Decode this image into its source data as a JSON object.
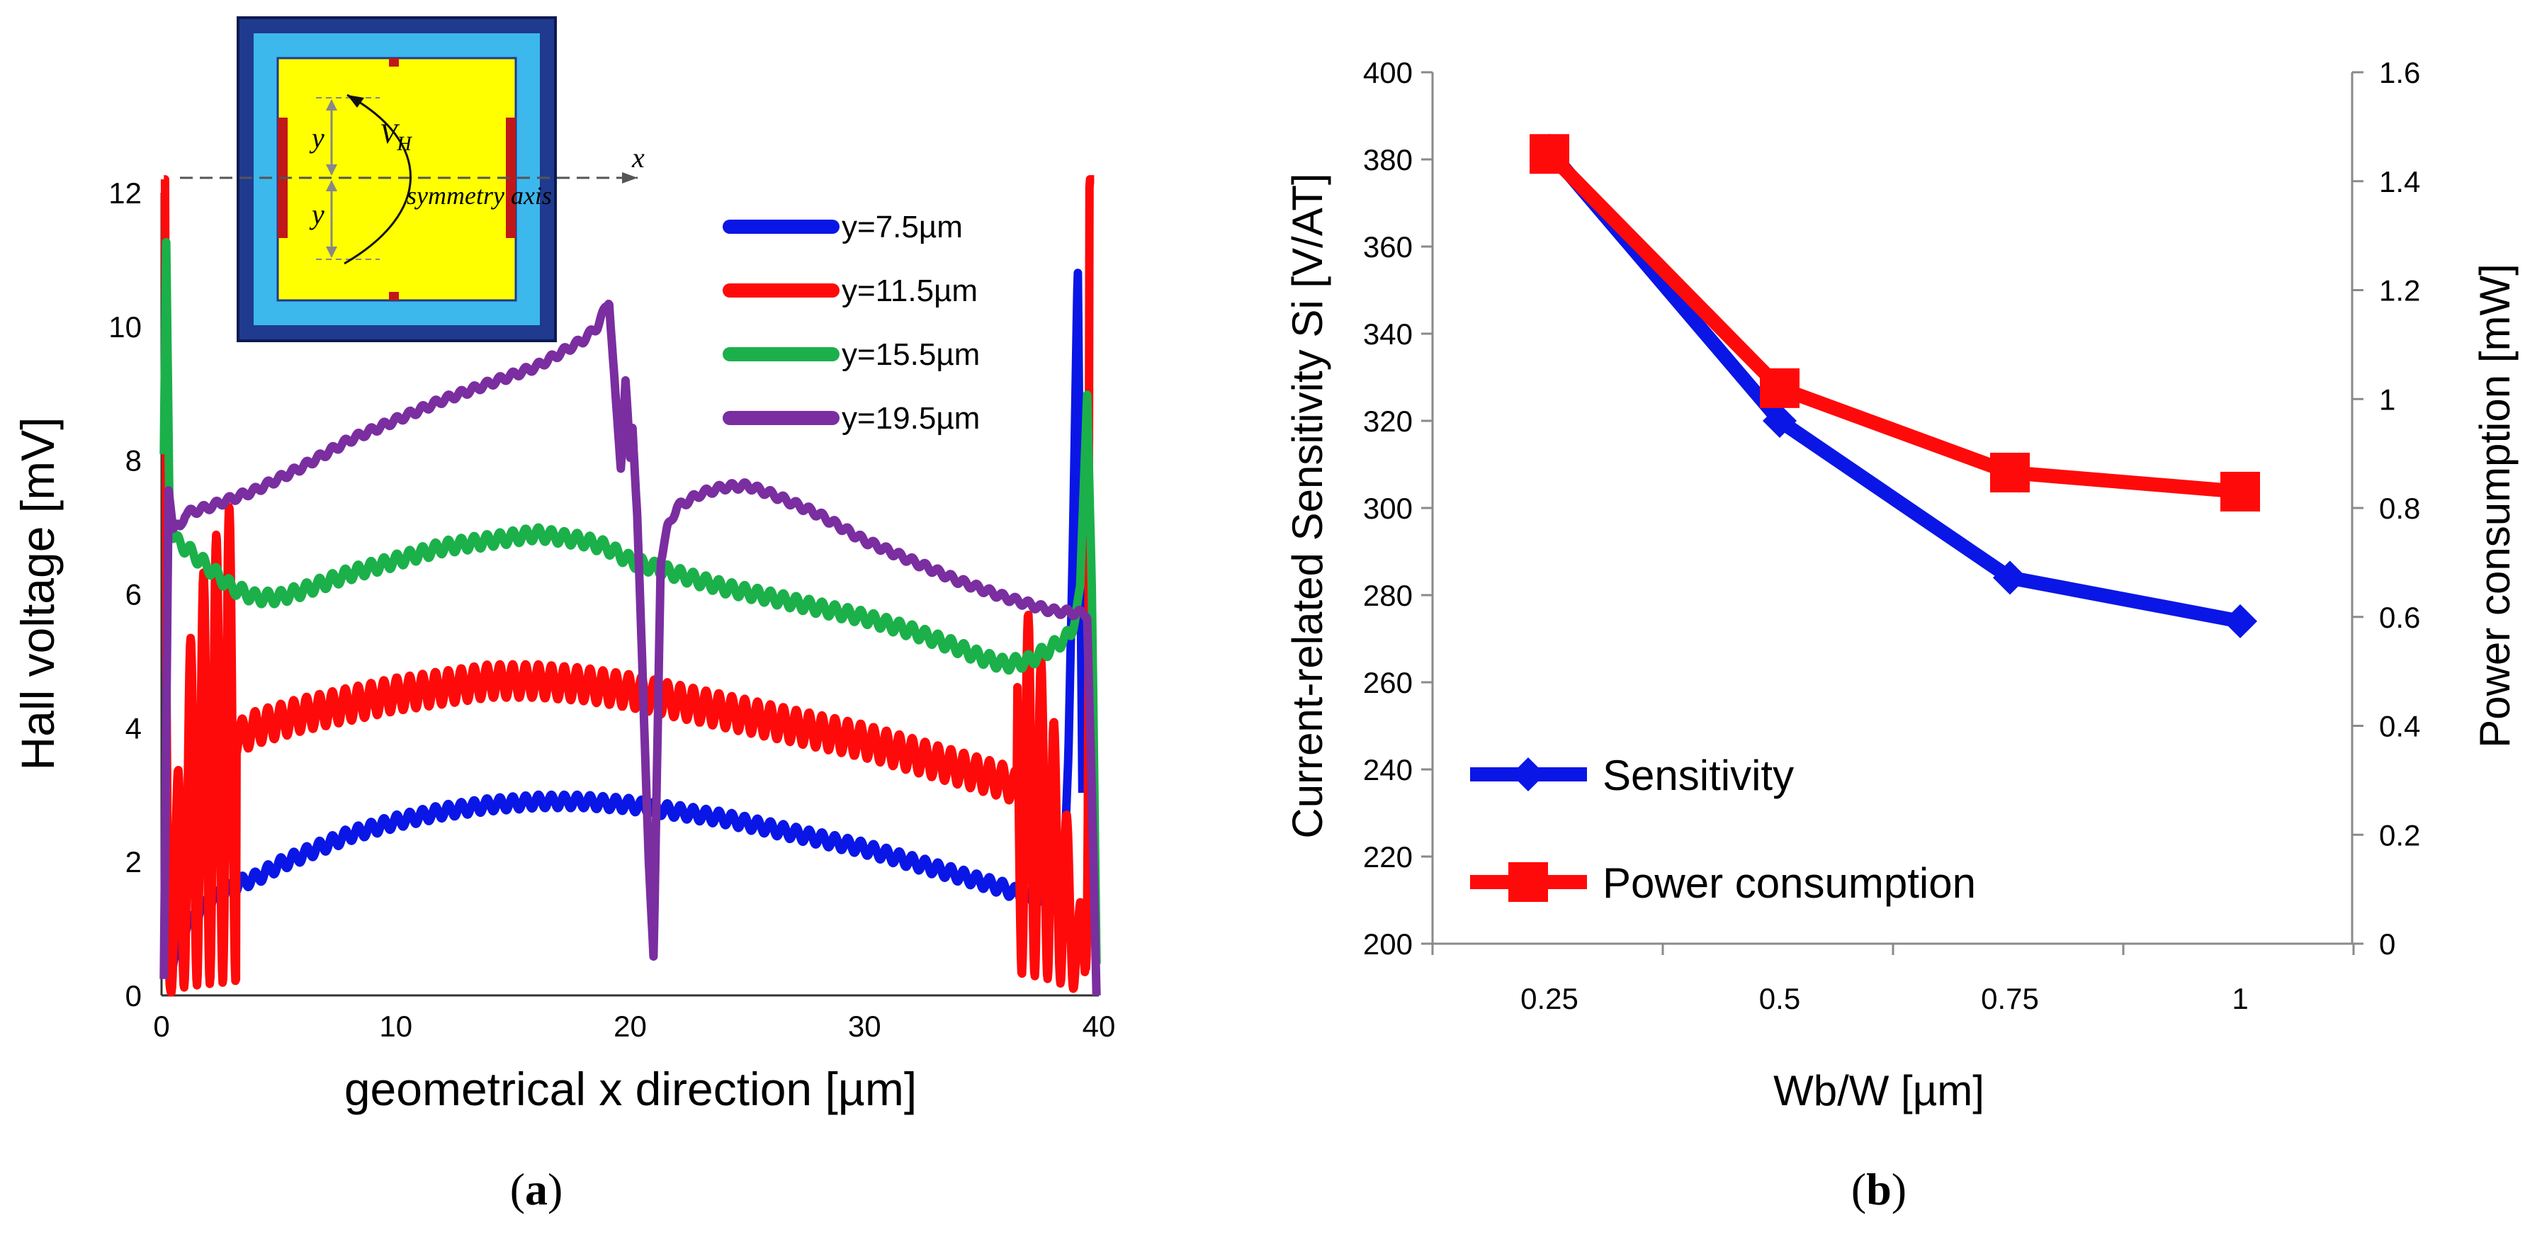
{
  "chart_data": [
    {
      "panel": "a",
      "type": "line",
      "caption_open": "(",
      "caption_letter": "a",
      "caption_close": ")",
      "xlabel": "geometrical x direction [µm]",
      "ylabel": "Hall voltage [mV]",
      "xlim": [
        0,
        40
      ],
      "ylim": [
        0,
        12
      ],
      "xticks": [
        0,
        10,
        20,
        30,
        40
      ],
      "yticks": [
        0,
        2,
        4,
        6,
        8,
        10,
        12
      ],
      "legend_position": "top-right",
      "series": [
        {
          "name": "y=7.5µm",
          "color": "#0a16e6",
          "x": [
            0.1,
            0.2,
            0.35,
            0.6,
            1,
            1.5,
            2,
            2.5,
            3,
            3.5,
            4,
            5,
            6,
            8,
            10,
            12,
            14,
            16,
            18,
            20,
            22,
            24,
            26,
            28,
            30,
            32,
            34,
            35,
            36,
            37,
            37.5,
            38,
            38.5,
            38.7,
            38.9,
            39.1,
            39.3
          ],
          "y": [
            0.5,
            0.3,
            0.4,
            0.6,
            1.0,
            1.2,
            1.4,
            1.5,
            1.6,
            1.7,
            1.75,
            1.95,
            2.1,
            2.4,
            2.6,
            2.75,
            2.85,
            2.9,
            2.9,
            2.85,
            2.75,
            2.65,
            2.5,
            2.35,
            2.2,
            2.0,
            1.8,
            1.7,
            1.6,
            1.45,
            1.4,
            1.4,
            1.7,
            3.5,
            7.0,
            10.9,
            3.0
          ],
          "ripple": 0.1
        },
        {
          "name": "y=11.5µm",
          "color": "#ff0a0a",
          "x": [
            0.1,
            0.2,
            0.35,
            0.5,
            0.8,
            1.2,
            1.6,
            2,
            2.5,
            3,
            3.5,
            4,
            5,
            6,
            8,
            10,
            12,
            14,
            16,
            18,
            20,
            22,
            24,
            26,
            28,
            30,
            32,
            34,
            35,
            36,
            36.5,
            37,
            37.3,
            37.6,
            37.9,
            38.2,
            38.5,
            38.8,
            39.1,
            39.4,
            39.6,
            39.8
          ],
          "y": [
            11.9,
            3.0,
            0.5,
            1.2,
            2.0,
            2.7,
            3.1,
            3.4,
            3.6,
            3.8,
            3.9,
            4.0,
            4.1,
            4.2,
            4.35,
            4.5,
            4.6,
            4.7,
            4.7,
            4.65,
            4.55,
            4.4,
            4.25,
            4.1,
            3.95,
            3.8,
            3.6,
            3.4,
            3.3,
            3.2,
            3.1,
            3.0,
            2.8,
            2.6,
            2.4,
            2.0,
            1.6,
            1.2,
            0.6,
            1.0,
            11.9,
            12.0
          ],
          "ripple": 0.25,
          "deep_oscillations": true
        },
        {
          "name": "y=15.5µm",
          "color": "#1bb04a",
          "x": [
            0.1,
            0.2,
            0.35,
            0.6,
            1,
            2,
            3,
            4,
            5,
            6,
            8,
            10,
            12,
            14,
            16,
            18,
            19,
            20,
            22,
            24,
            26,
            28,
            30,
            32,
            34,
            35,
            36,
            37,
            38,
            38.8,
            39.2,
            39.5,
            39.7,
            39.9
          ],
          "y": [
            8.0,
            11.2,
            7.0,
            6.8,
            6.7,
            6.4,
            6.1,
            5.95,
            5.95,
            6.05,
            6.3,
            6.5,
            6.7,
            6.8,
            6.9,
            6.8,
            6.7,
            6.5,
            6.3,
            6.1,
            5.95,
            5.8,
            5.65,
            5.45,
            5.2,
            5.05,
            4.95,
            5.0,
            5.2,
            5.4,
            6.0,
            9.1,
            6.0,
            0.5
          ],
          "ripple": 0.1
        },
        {
          "name": "y=19.5µm",
          "color": "#7a2ea0",
          "x": [
            0.1,
            0.3,
            0.5,
            0.8,
            1,
            2,
            4,
            6,
            8,
            10,
            12,
            14,
            16,
            17,
            18,
            18.6,
            19.1,
            19.4,
            19.6,
            19.8,
            20.0,
            20.1,
            20.3,
            20.6,
            20.8,
            21.0,
            21.3,
            21.6,
            22,
            23,
            24,
            25,
            26,
            28,
            30,
            32,
            34,
            36,
            37,
            38,
            39,
            39.5,
            39.7,
            39.9
          ],
          "y": [
            0.2,
            7.6,
            7.0,
            7.0,
            7.2,
            7.3,
            7.55,
            7.9,
            8.3,
            8.6,
            8.9,
            9.15,
            9.4,
            9.6,
            9.8,
            10.0,
            10.4,
            8.8,
            7.9,
            9.2,
            8.0,
            8.5,
            7.2,
            4.0,
            2.0,
            0.5,
            6.5,
            7.0,
            7.3,
            7.5,
            7.6,
            7.62,
            7.5,
            7.2,
            6.8,
            6.5,
            6.2,
            5.95,
            5.85,
            5.75,
            5.72,
            5.7,
            3.0,
            0.0
          ],
          "ripple": 0.05
        }
      ],
      "inset": {
        "x_axis_label": "x",
        "y_label": "y",
        "vh_label_main": "V",
        "vh_label_sub": "H",
        "symmetry_label": "symmetry axis"
      }
    },
    {
      "panel": "b",
      "type": "line",
      "caption_open": "(",
      "caption_letter": "b",
      "caption_close": ")",
      "xlabel": "Wb/W [µm]",
      "ylabel_left": "Current-related Sensitivity Si [V/AT]",
      "ylabel_right": "Power consumption [mW]",
      "categories": [
        "0.25",
        "0.5",
        "0.75",
        "1"
      ],
      "ylim_left": [
        200,
        400
      ],
      "yticks_left": [
        200,
        220,
        240,
        260,
        280,
        300,
        320,
        340,
        360,
        380,
        400
      ],
      "ylim_right": [
        0,
        1.6
      ],
      "yticks_right": [
        "0",
        "0.2",
        "0.4",
        "0.6",
        "0.8",
        "1",
        "1.2",
        "1.4",
        "1.6"
      ],
      "legend_position": "bottom-left",
      "series": [
        {
          "name": "Sensitivity",
          "axis": "left",
          "color": "#0a16e6",
          "marker": "diamond",
          "values": [
            382,
            320,
            284,
            274
          ]
        },
        {
          "name": "Power consumption",
          "axis": "right",
          "color": "#ff0a0a",
          "marker": "square",
          "values": [
            1.45,
            1.02,
            0.865,
            0.83
          ]
        }
      ]
    }
  ]
}
